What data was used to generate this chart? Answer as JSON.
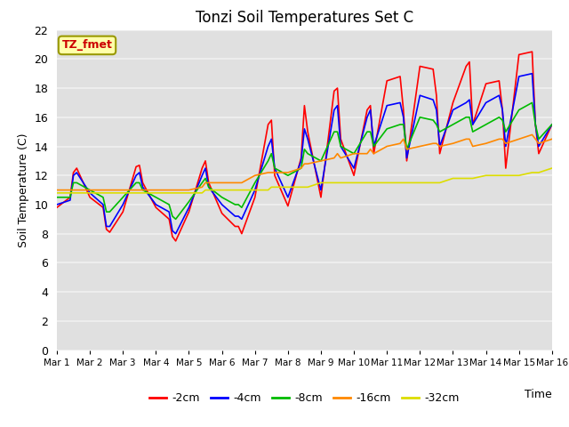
{
  "title": "Tonzi Soil Temperatures Set C",
  "xlabel": "Time",
  "ylabel": "Soil Temperature (C)",
  "ylim": [
    0,
    22
  ],
  "xlim": [
    0,
    15
  ],
  "xtick_labels": [
    "Mar 1",
    "Mar 2",
    "Mar 3",
    "Mar 4",
    "Mar 5",
    "Mar 6",
    "Mar 7",
    "Mar 8",
    "Mar 9",
    "Mar 10",
    "Mar 11",
    "Mar 12",
    "Mar 13",
    "Mar 14",
    "Mar 15",
    "Mar 16"
  ],
  "ytick_values": [
    0,
    2,
    4,
    6,
    8,
    10,
    12,
    14,
    16,
    18,
    20,
    22
  ],
  "plot_bg_color": "#e0e0e0",
  "grid_color": "#f0f0f0",
  "label_box_text": "TZ_fmet",
  "label_box_facecolor": "#ffffaa",
  "label_box_edgecolor": "#999900",
  "label_box_textcolor": "#cc0000",
  "line_order": [
    "-2cm",
    "-4cm",
    "-8cm",
    "-16cm",
    "-32cm"
  ],
  "line_colors": {
    "-2cm": "#ff0000",
    "-4cm": "#0000ff",
    "-8cm": "#00bb00",
    "-16cm": "#ff8800",
    "-32cm": "#dddd00"
  },
  "series": {
    "-2cm": {
      "x": [
        0,
        0.4,
        0.5,
        0.6,
        1.0,
        1.4,
        1.5,
        1.6,
        2.0,
        2.4,
        2.5,
        2.6,
        3.0,
        3.4,
        3.5,
        3.6,
        4.0,
        4.4,
        4.5,
        4.6,
        5.0,
        5.4,
        5.5,
        5.6,
        6.0,
        6.4,
        6.5,
        6.6,
        7.0,
        7.4,
        7.5,
        7.6,
        8.0,
        8.4,
        8.5,
        8.6,
        9.0,
        9.4,
        9.5,
        9.6,
        10.0,
        10.4,
        10.5,
        10.6,
        11.0,
        11.4,
        11.5,
        11.6,
        12.0,
        12.4,
        12.5,
        12.6,
        13.0,
        13.4,
        13.5,
        13.6,
        14.0,
        14.4,
        14.5,
        14.6,
        15.0
      ],
      "y": [
        9.8,
        10.5,
        12.2,
        12.5,
        10.5,
        9.8,
        8.3,
        8.1,
        9.5,
        12.6,
        12.7,
        11.5,
        9.8,
        9.0,
        7.8,
        7.5,
        9.5,
        12.5,
        13.0,
        11.5,
        9.4,
        8.5,
        8.5,
        8.0,
        10.5,
        15.5,
        15.8,
        12.0,
        9.9,
        13.2,
        16.8,
        15.0,
        10.5,
        17.8,
        18.0,
        14.5,
        12.0,
        16.5,
        16.8,
        13.5,
        18.5,
        18.8,
        16.5,
        13.0,
        19.5,
        19.3,
        17.5,
        13.5,
        17.0,
        19.5,
        19.8,
        15.5,
        18.3,
        18.5,
        16.5,
        12.5,
        20.3,
        20.5,
        15.5,
        13.5,
        15.5
      ]
    },
    "-4cm": {
      "x": [
        0,
        0.4,
        0.5,
        0.6,
        1.0,
        1.4,
        1.5,
        1.6,
        2.0,
        2.4,
        2.5,
        2.6,
        3.0,
        3.4,
        3.5,
        3.6,
        4.0,
        4.4,
        4.5,
        4.6,
        5.0,
        5.4,
        5.5,
        5.6,
        6.0,
        6.4,
        6.5,
        6.6,
        7.0,
        7.4,
        7.5,
        7.6,
        8.0,
        8.4,
        8.5,
        8.6,
        9.0,
        9.4,
        9.5,
        9.6,
        10.0,
        10.4,
        10.5,
        10.6,
        11.0,
        11.4,
        11.5,
        11.6,
        12.0,
        12.4,
        12.5,
        12.6,
        13.0,
        13.4,
        13.5,
        13.6,
        14.0,
        14.4,
        14.5,
        14.6,
        15.0
      ],
      "y": [
        10.0,
        10.3,
        12.0,
        12.2,
        10.8,
        10.0,
        8.5,
        8.5,
        10.0,
        12.0,
        12.2,
        11.2,
        10.0,
        9.5,
        8.2,
        8.0,
        9.8,
        12.0,
        12.5,
        11.2,
        10.0,
        9.2,
        9.2,
        9.0,
        11.0,
        14.0,
        14.5,
        12.5,
        10.5,
        13.0,
        15.2,
        14.5,
        11.0,
        16.5,
        16.8,
        14.0,
        12.5,
        16.0,
        16.5,
        14.0,
        16.8,
        17.0,
        16.0,
        13.2,
        17.5,
        17.2,
        16.5,
        14.0,
        16.5,
        17.0,
        17.2,
        15.5,
        17.0,
        17.5,
        16.5,
        14.0,
        18.8,
        19.0,
        15.5,
        14.0,
        15.5
      ]
    },
    "-8cm": {
      "x": [
        0,
        0.4,
        0.5,
        0.6,
        1.0,
        1.4,
        1.5,
        1.6,
        2.0,
        2.4,
        2.5,
        2.6,
        3.0,
        3.4,
        3.5,
        3.6,
        4.0,
        4.4,
        4.5,
        4.6,
        5.0,
        5.4,
        5.5,
        5.6,
        6.0,
        6.4,
        6.5,
        6.6,
        7.0,
        7.4,
        7.5,
        7.6,
        8.0,
        8.4,
        8.5,
        8.6,
        9.0,
        9.4,
        9.5,
        9.6,
        10.0,
        10.4,
        10.5,
        10.6,
        11.0,
        11.4,
        11.5,
        11.6,
        12.0,
        12.4,
        12.5,
        12.6,
        13.0,
        13.4,
        13.5,
        13.6,
        14.0,
        14.4,
        14.5,
        14.6,
        15.0
      ],
      "y": [
        10.5,
        10.5,
        11.5,
        11.5,
        11.0,
        10.5,
        9.5,
        9.5,
        10.5,
        11.5,
        11.5,
        11.0,
        10.5,
        10.0,
        9.2,
        9.0,
        10.2,
        11.5,
        11.8,
        11.2,
        10.5,
        10.0,
        10.0,
        9.8,
        11.5,
        13.0,
        13.5,
        12.5,
        12.0,
        12.5,
        13.8,
        13.5,
        13.0,
        15.0,
        15.0,
        14.0,
        13.5,
        15.0,
        15.0,
        14.0,
        15.2,
        15.5,
        15.5,
        13.8,
        16.0,
        15.8,
        15.5,
        15.0,
        15.5,
        16.0,
        16.0,
        15.0,
        15.5,
        16.0,
        15.8,
        15.0,
        16.5,
        17.0,
        15.5,
        14.5,
        15.5
      ]
    },
    "-16cm": {
      "x": [
        0,
        0.4,
        0.5,
        0.6,
        1.0,
        1.4,
        1.5,
        1.6,
        2.0,
        2.4,
        2.5,
        2.6,
        3.0,
        3.4,
        3.5,
        3.6,
        4.0,
        4.4,
        4.5,
        4.6,
        5.0,
        5.4,
        5.5,
        5.6,
        6.0,
        6.4,
        6.5,
        6.6,
        7.0,
        7.4,
        7.5,
        7.6,
        8.0,
        8.4,
        8.5,
        8.6,
        9.0,
        9.4,
        9.5,
        9.6,
        10.0,
        10.4,
        10.5,
        10.6,
        11.0,
        11.4,
        11.5,
        11.6,
        12.0,
        12.4,
        12.5,
        12.6,
        13.0,
        13.4,
        13.5,
        13.6,
        14.0,
        14.4,
        14.5,
        14.6,
        15.0
      ],
      "y": [
        11.0,
        11.0,
        11.0,
        11.0,
        11.0,
        11.0,
        11.0,
        11.0,
        11.0,
        11.0,
        11.0,
        11.0,
        11.0,
        11.0,
        11.0,
        11.0,
        11.0,
        11.2,
        11.5,
        11.5,
        11.5,
        11.5,
        11.5,
        11.5,
        12.0,
        12.2,
        12.2,
        12.2,
        12.2,
        12.5,
        12.8,
        12.8,
        13.0,
        13.2,
        13.5,
        13.2,
        13.5,
        13.5,
        13.8,
        13.5,
        14.0,
        14.2,
        14.5,
        13.8,
        14.0,
        14.2,
        14.2,
        14.0,
        14.2,
        14.5,
        14.5,
        14.0,
        14.2,
        14.5,
        14.5,
        14.2,
        14.5,
        14.8,
        14.5,
        14.2,
        14.5
      ]
    },
    "-32cm": {
      "x": [
        0,
        0.4,
        0.5,
        0.6,
        1.0,
        1.4,
        1.5,
        1.6,
        2.0,
        2.4,
        2.5,
        2.6,
        3.0,
        3.4,
        3.5,
        3.6,
        4.0,
        4.4,
        4.5,
        4.6,
        5.0,
        5.4,
        5.5,
        5.6,
        6.0,
        6.4,
        6.5,
        6.6,
        7.0,
        7.4,
        7.5,
        7.6,
        8.0,
        8.4,
        8.5,
        8.6,
        9.0,
        9.4,
        9.5,
        9.6,
        10.0,
        10.4,
        10.5,
        10.6,
        11.0,
        11.4,
        11.5,
        11.6,
        12.0,
        12.4,
        12.5,
        12.6,
        13.0,
        13.4,
        13.5,
        13.6,
        14.0,
        14.4,
        14.5,
        14.6,
        15.0
      ],
      "y": [
        10.8,
        10.8,
        10.8,
        10.8,
        10.8,
        10.8,
        10.8,
        10.8,
        10.8,
        10.8,
        10.8,
        10.8,
        10.8,
        10.8,
        10.8,
        10.8,
        10.8,
        10.8,
        11.0,
        11.0,
        11.0,
        11.0,
        11.0,
        11.0,
        11.0,
        11.0,
        11.2,
        11.2,
        11.2,
        11.2,
        11.2,
        11.2,
        11.5,
        11.5,
        11.5,
        11.5,
        11.5,
        11.5,
        11.5,
        11.5,
        11.5,
        11.5,
        11.5,
        11.5,
        11.5,
        11.5,
        11.5,
        11.5,
        11.8,
        11.8,
        11.8,
        11.8,
        12.0,
        12.0,
        12.0,
        12.0,
        12.0,
        12.2,
        12.2,
        12.2,
        12.5
      ]
    }
  }
}
